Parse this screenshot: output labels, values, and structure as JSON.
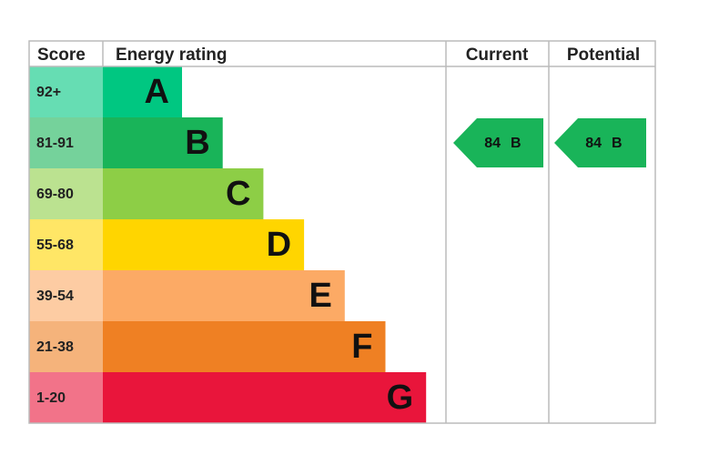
{
  "header": {
    "score": "Score",
    "rating": "Energy rating",
    "current": "Current",
    "potential": "Potential"
  },
  "rows": [
    {
      "score": "92+",
      "letter": "A",
      "color": "#00c781"
    },
    {
      "score": "81-91",
      "letter": "B",
      "color": "#19b459"
    },
    {
      "score": "69-80",
      "letter": "C",
      "color": "#8dce46"
    },
    {
      "score": "55-68",
      "letter": "D",
      "color": "#ffd500"
    },
    {
      "score": "39-54",
      "letter": "E",
      "color": "#fcaa65"
    },
    {
      "score": "21-38",
      "letter": "F",
      "color": "#ef8023"
    },
    {
      "score": "1-20",
      "letter": "G",
      "color": "#e9153b"
    }
  ],
  "current": {
    "score": 84,
    "letter": "B"
  },
  "potential": {
    "score": 84,
    "letter": "B"
  }
}
